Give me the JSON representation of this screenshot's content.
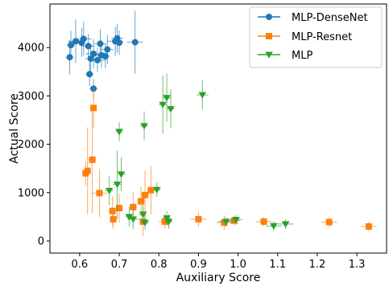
{
  "chart_data": {
    "type": "scatter",
    "xlabel": "Auxiliary Score",
    "ylabel": "Actual Score",
    "xlim": [
      0.525,
      1.375
    ],
    "ylim": [
      -250,
      4900
    ],
    "xticks": [
      0.6,
      0.7,
      0.8,
      0.9,
      1.0,
      1.1,
      1.2,
      1.3
    ],
    "xtick_labels": [
      "0.6",
      "0.7",
      "0.8",
      "0.9",
      "1.0",
      "1.1",
      "1.2",
      "1.3"
    ],
    "yticks": [
      0,
      1000,
      2000,
      3000,
      4000
    ],
    "ytick_labels": [
      "0",
      "1000",
      "2000",
      "3000",
      "4000"
    ],
    "grid": false,
    "legend_position": "top-right",
    "series": [
      {
        "name": "MLP-DenseNet",
        "color": "#1f77b4",
        "marker": "circle",
        "points": [
          {
            "x": 0.575,
            "y": 3800,
            "xerr": 0.01,
            "yerr": 350
          },
          {
            "x": 0.578,
            "y": 4050,
            "xerr": 0.01,
            "yerr": 300
          },
          {
            "x": 0.59,
            "y": 4130,
            "xerr": 0.02,
            "yerr": 450
          },
          {
            "x": 0.605,
            "y": 4100,
            "xerr": 0.01,
            "yerr": 300
          },
          {
            "x": 0.61,
            "y": 4180,
            "xerr": 0.02,
            "yerr": 350
          },
          {
            "x": 0.622,
            "y": 4030,
            "xerr": 0.015,
            "yerr": 250
          },
          {
            "x": 0.625,
            "y": 3450,
            "xerr": 0.01,
            "yerr": 250
          },
          {
            "x": 0.628,
            "y": 3770,
            "xerr": 0.015,
            "yerr": 300
          },
          {
            "x": 0.635,
            "y": 3870,
            "xerr": 0.02,
            "yerr": 300
          },
          {
            "x": 0.635,
            "y": 3150,
            "xerr": 0.01,
            "yerr": 200
          },
          {
            "x": 0.645,
            "y": 3740,
            "xerr": 0.02,
            "yerr": 250
          },
          {
            "x": 0.652,
            "y": 4080,
            "xerr": 0.015,
            "yerr": 300
          },
          {
            "x": 0.655,
            "y": 3840,
            "xerr": 0.015,
            "yerr": 250
          },
          {
            "x": 0.665,
            "y": 3820,
            "xerr": 0.01,
            "yerr": 250
          },
          {
            "x": 0.67,
            "y": 3960,
            "xerr": 0.015,
            "yerr": 300
          },
          {
            "x": 0.69,
            "y": 4130,
            "xerr": 0.02,
            "yerr": 300
          },
          {
            "x": 0.695,
            "y": 4190,
            "xerr": 0.015,
            "yerr": 300
          },
          {
            "x": 0.7,
            "y": 4100,
            "xerr": 0.01,
            "yerr": 250
          },
          {
            "x": 0.74,
            "y": 4110,
            "xerr": 0.02,
            "yerr": 650
          }
        ]
      },
      {
        "name": "MLP-Resnet",
        "color": "#ff7f0e",
        "marker": "square",
        "points": [
          {
            "x": 0.615,
            "y": 1400,
            "xerr": 0.005,
            "yerr": 250
          },
          {
            "x": 0.62,
            "y": 1450,
            "xerr": 0.005,
            "yerr": 900
          },
          {
            "x": 0.632,
            "y": 1680,
            "xerr": 0.01,
            "yerr": 1100
          },
          {
            "x": 0.635,
            "y": 2750,
            "xerr": 0.005,
            "yerr": 400
          },
          {
            "x": 0.65,
            "y": 990,
            "xerr": 0.02,
            "yerr": 500
          },
          {
            "x": 0.683,
            "y": 620,
            "xerr": 0.01,
            "yerr": 300
          },
          {
            "x": 0.685,
            "y": 450,
            "xerr": 0.01,
            "yerr": 200
          },
          {
            "x": 0.7,
            "y": 680,
            "xerr": 0.01,
            "yerr": 300
          },
          {
            "x": 0.735,
            "y": 700,
            "xerr": 0.01,
            "yerr": 300
          },
          {
            "x": 0.755,
            "y": 820,
            "xerr": 0.01,
            "yerr": 300
          },
          {
            "x": 0.76,
            "y": 400,
            "xerr": 0.01,
            "yerr": 300
          },
          {
            "x": 0.765,
            "y": 950,
            "xerr": 0.01,
            "yerr": 500
          },
          {
            "x": 0.78,
            "y": 1050,
            "xerr": 0.01,
            "yerr": 500
          },
          {
            "x": 0.815,
            "y": 400,
            "xerr": 0.015,
            "yerr": 150
          },
          {
            "x": 0.9,
            "y": 450,
            "xerr": 0.02,
            "yerr": 150
          },
          {
            "x": 0.965,
            "y": 380,
            "xerr": 0.02,
            "yerr": 150
          },
          {
            "x": 0.99,
            "y": 420,
            "xerr": 0.015,
            "yerr": 100
          },
          {
            "x": 1.065,
            "y": 400,
            "xerr": 0.02,
            "yerr": 100
          },
          {
            "x": 1.23,
            "y": 390,
            "xerr": 0.02,
            "yerr": 100
          },
          {
            "x": 1.33,
            "y": 300,
            "xerr": 0.02,
            "yerr": 100
          }
        ]
      },
      {
        "name": "MLP",
        "color": "#2ca02c",
        "marker": "triangle-down",
        "points": [
          {
            "x": 0.675,
            "y": 1040,
            "xerr": 0.01,
            "yerr": 300
          },
          {
            "x": 0.695,
            "y": 1170,
            "xerr": 0.01,
            "yerr": 700
          },
          {
            "x": 0.7,
            "y": 2260,
            "xerr": 0.01,
            "yerr": 200
          },
          {
            "x": 0.705,
            "y": 1380,
            "xerr": 0.01,
            "yerr": 350
          },
          {
            "x": 0.725,
            "y": 500,
            "xerr": 0.01,
            "yerr": 200
          },
          {
            "x": 0.735,
            "y": 450,
            "xerr": 0.015,
            "yerr": 200
          },
          {
            "x": 0.76,
            "y": 550,
            "xerr": 0.01,
            "yerr": 200
          },
          {
            "x": 0.763,
            "y": 2380,
            "xerr": 0.01,
            "yerr": 300
          },
          {
            "x": 0.765,
            "y": 380,
            "xerr": 0.01,
            "yerr": 150
          },
          {
            "x": 0.795,
            "y": 1060,
            "xerr": 0.01,
            "yerr": 150
          },
          {
            "x": 0.81,
            "y": 2820,
            "xerr": 0.01,
            "yerr": 600
          },
          {
            "x": 0.82,
            "y": 2960,
            "xerr": 0.01,
            "yerr": 500
          },
          {
            "x": 0.82,
            "y": 470,
            "xerr": 0.01,
            "yerr": 150
          },
          {
            "x": 0.83,
            "y": 2730,
            "xerr": 0.01,
            "yerr": 400
          },
          {
            "x": 0.825,
            "y": 400,
            "xerr": 0.01,
            "yerr": 150
          },
          {
            "x": 0.91,
            "y": 3020,
            "xerr": 0.015,
            "yerr": 300
          },
          {
            "x": 0.97,
            "y": 400,
            "xerr": 0.02,
            "yerr": 100
          },
          {
            "x": 0.995,
            "y": 440,
            "xerr": 0.015,
            "yerr": 100
          },
          {
            "x": 1.09,
            "y": 310,
            "xerr": 0.02,
            "yerr": 100
          },
          {
            "x": 1.12,
            "y": 350,
            "xerr": 0.02,
            "yerr": 100
          }
        ]
      }
    ]
  }
}
